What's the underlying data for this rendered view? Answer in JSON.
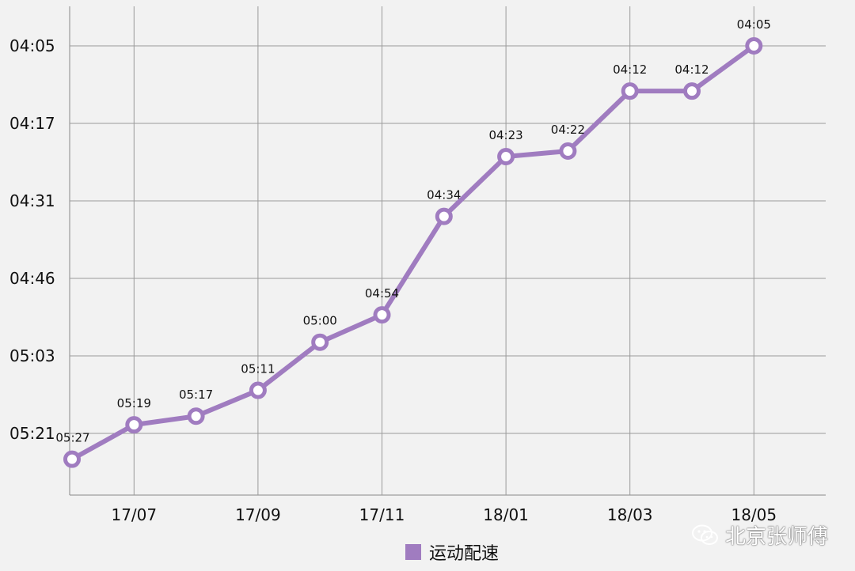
{
  "chart_data": {
    "type": "line",
    "x_tick_labels": [
      "17/07",
      "17/09",
      "17/11",
      "18/01",
      "18/03",
      "18/05"
    ],
    "y_tick_labels": [
      "04:05",
      "04:17",
      "04:31",
      "04:46",
      "05:03",
      "05:21"
    ],
    "series": [
      {
        "name": "运动配速",
        "color": "#a07cc0",
        "labels": [
          "05:27",
          "05:19",
          "05:17",
          "05:11",
          "05:00",
          "04:54",
          "04:34",
          "04:23",
          "04:22",
          "04:12",
          "04:12",
          "04:05"
        ],
        "values_seconds": [
          327,
          319,
          317,
          311,
          300,
          294,
          274,
          263,
          262,
          252,
          252,
          245
        ]
      }
    ],
    "ylim_seconds": [
      245,
      321
    ],
    "y_inverted": true,
    "grid": true,
    "legend_position": "bottom-center"
  },
  "legend": {
    "label": "运动配速",
    "color": "#a07cc0"
  },
  "watermark": {
    "text": "北京张师傅",
    "icon": "wechat-icon"
  }
}
